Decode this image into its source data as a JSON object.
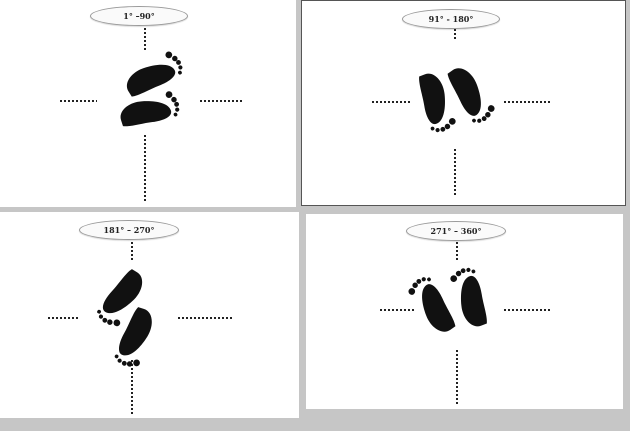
{
  "panels": [
    {
      "id": "q1",
      "range_label": "1° –90°"
    },
    {
      "id": "q2",
      "range_label": "91° - 180°"
    },
    {
      "id": "q3",
      "range_label": "181° – 270°"
    },
    {
      "id": "q4",
      "range_label": "271° – 360°"
    }
  ],
  "colors": {
    "background": "#c6c6c6",
    "panel": "#ffffff",
    "ink": "#111111"
  }
}
